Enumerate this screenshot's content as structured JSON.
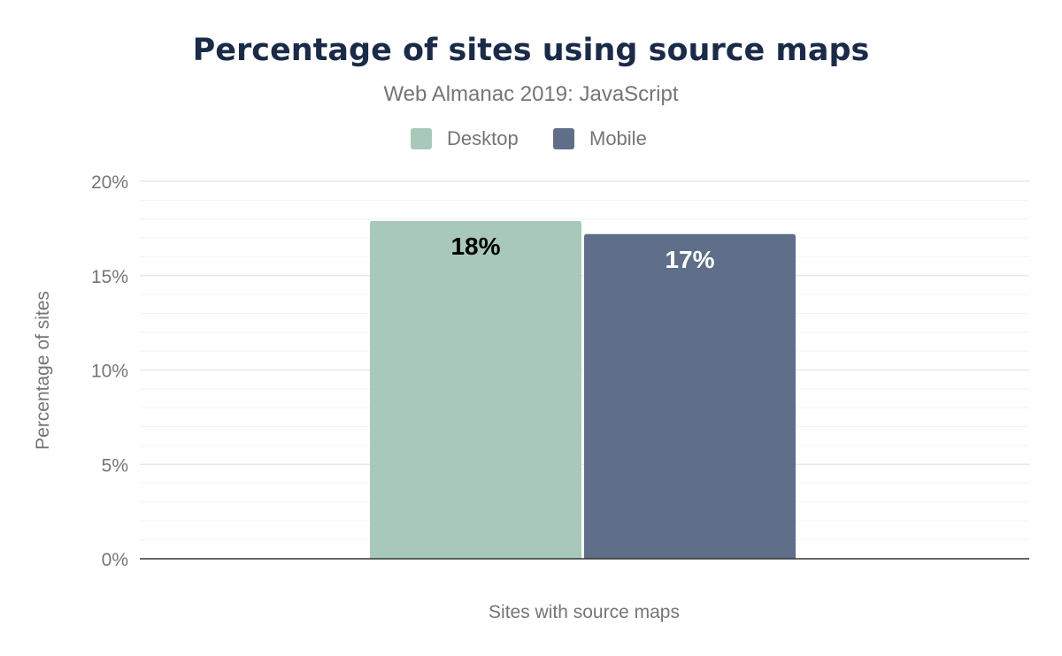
{
  "chart_data": {
    "type": "bar",
    "title": "Percentage of sites using source maps",
    "subtitle": "Web Almanac 2019: JavaScript",
    "xlabel": "Sites with source maps",
    "ylabel": "Percentage of sites",
    "categories": [
      "Sites with source maps"
    ],
    "series": [
      {
        "name": "Desktop",
        "values": [
          17.9
        ],
        "label": "18%",
        "color": "#a8c9ba",
        "label_color": "#000000"
      },
      {
        "name": "Mobile",
        "values": [
          17.2
        ],
        "label": "17%",
        "color": "#5f6f8a",
        "label_color": "#ffffff"
      }
    ],
    "ylim": [
      0,
      20
    ],
    "yticks": [
      {
        "value": 0,
        "label": "0%"
      },
      {
        "value": 5,
        "label": "5%"
      },
      {
        "value": 10,
        "label": "10%"
      },
      {
        "value": 15,
        "label": "15%"
      },
      {
        "value": 20,
        "label": "20%"
      }
    ],
    "minor_grid_step": 1,
    "grid": true,
    "legend_position": "top-center"
  }
}
